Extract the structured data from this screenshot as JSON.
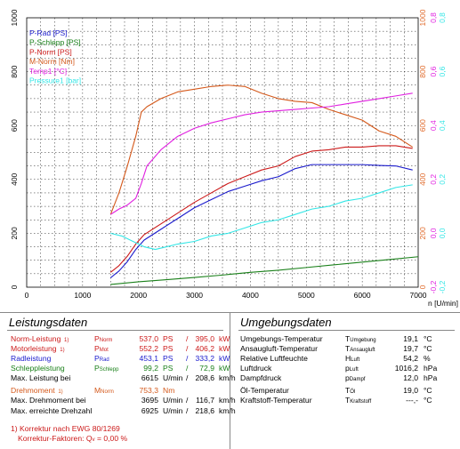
{
  "chart_data": {
    "type": "line",
    "xlabel": "n [U/min]",
    "xlim": [
      0,
      7000
    ],
    "x_ticks": [
      "0",
      "1000",
      "2000",
      "3000",
      "4000",
      "5000",
      "6000",
      "7000"
    ],
    "ylim_left": [
      0,
      1000
    ],
    "y_ticks_left": [
      "0",
      "200",
      "400",
      "600",
      "800",
      "1000"
    ],
    "ylim_right1": [
      0,
      1000
    ],
    "y_ticks_right1": [
      "0",
      "200",
      "400",
      "600",
      "800",
      "1000"
    ],
    "ylim_right2": [
      -0.2,
      0.8
    ],
    "y_ticks_right2": [
      "-0,2",
      "0,0",
      "0,2",
      "0,4",
      "0,6",
      "0,8"
    ],
    "grid": true,
    "legend_position": "top-left",
    "legend": [
      {
        "name": "P-Rad [PS]",
        "color": "#1a1acc"
      },
      {
        "name": "P-Schlepp [PS]",
        "color": "#1a801a"
      },
      {
        "name": "P-Norm [PS]",
        "color": "#cc1a1a"
      },
      {
        "name": "M-Norm [Nm]",
        "color": "#d4581a"
      },
      {
        "name": "Temp1 [°C]",
        "color": "#e020e0"
      },
      {
        "name": "Pressure1 [bar]",
        "color": "#33e6e6"
      }
    ],
    "series": [
      {
        "name": "P-Rad [PS]",
        "color": "#1a1acc",
        "x": [
          1500,
          1650,
          1800,
          1950,
          2100,
          2400,
          2700,
          3000,
          3300,
          3600,
          3900,
          4200,
          4500,
          4800,
          5100,
          5400,
          5700,
          6000,
          6300,
          6600,
          6900
        ],
        "y": [
          35,
          60,
          95,
          140,
          175,
          215,
          255,
          295,
          325,
          355,
          375,
          395,
          410,
          440,
          455,
          455,
          455,
          455,
          452,
          450,
          435
        ]
      },
      {
        "name": "P-Schlepp [PS]",
        "color": "#1a801a",
        "x": [
          1500,
          2000,
          2500,
          3000,
          3500,
          4000,
          4500,
          5000,
          5500,
          6000,
          6500,
          7000
        ],
        "y": [
          10,
          20,
          28,
          36,
          45,
          55,
          63,
          73,
          83,
          93,
          103,
          113
        ]
      },
      {
        "name": "P-Norm [PS]",
        "color": "#cc1a1a",
        "x": [
          1500,
          1650,
          1800,
          1950,
          2100,
          2400,
          2700,
          3000,
          3300,
          3600,
          3900,
          4200,
          4500,
          4800,
          5100,
          5400,
          5700,
          6000,
          6300,
          6600,
          6900
        ],
        "y": [
          55,
          80,
          115,
          160,
          195,
          235,
          275,
          315,
          350,
          385,
          410,
          435,
          450,
          485,
          505,
          510,
          520,
          520,
          525,
          525,
          515
        ]
      },
      {
        "name": "M-Norm [Nm]",
        "color": "#d4581a",
        "x": [
          1500,
          1650,
          1800,
          1950,
          2050,
          2150,
          2400,
          2700,
          3000,
          3300,
          3600,
          3900,
          4200,
          4500,
          4800,
          5100,
          5400,
          5700,
          6000,
          6300,
          6600,
          6900
        ],
        "y": [
          270,
          350,
          450,
          560,
          650,
          670,
          700,
          725,
          735,
          745,
          750,
          745,
          720,
          700,
          690,
          685,
          660,
          640,
          620,
          580,
          560,
          520
        ]
      },
      {
        "name": "Temp1 [°C]",
        "color": "#e020e0",
        "x": [
          1500,
          1650,
          1800,
          1950,
          2050,
          2150,
          2400,
          2700,
          3000,
          3300,
          3600,
          3900,
          4200,
          4500,
          4800,
          5100,
          5400,
          5700,
          6000,
          6300,
          6600,
          6900
        ],
        "y": [
          270,
          290,
          305,
          330,
          385,
          450,
          510,
          560,
          590,
          610,
          625,
          640,
          650,
          655,
          660,
          665,
          670,
          680,
          690,
          700,
          710,
          720
        ]
      },
      {
        "name": "Pressure1 [bar]",
        "color": "#33e6e6",
        "x": [
          1500,
          1700,
          1900,
          2100,
          2300,
          2500,
          2700,
          3000,
          3300,
          3600,
          3900,
          4200,
          4500,
          4800,
          5100,
          5400,
          5700,
          6000,
          6300,
          6600,
          6900
        ],
        "y": [
          0.0,
          -0.01,
          -0.03,
          -0.05,
          -0.06,
          -0.05,
          -0.04,
          -0.03,
          -0.01,
          0.0,
          0.02,
          0.04,
          0.05,
          0.07,
          0.09,
          0.1,
          0.12,
          0.13,
          0.15,
          0.17,
          0.18
        ]
      }
    ]
  },
  "left_panel": {
    "title": "Leistungsdaten",
    "rows": [
      {
        "label": "Norm-Leistung",
        "note": "1)",
        "sym": "P",
        "symsub": "Norm",
        "v1": "537,0",
        "u1": "PS",
        "sep": "/",
        "v2": "395,0",
        "u2": "kW",
        "color": "#cc1a1a"
      },
      {
        "label": "Motorleistung",
        "note": "1)",
        "sym": "P",
        "symsub": "Mot",
        "v1": "552,2",
        "u1": "PS",
        "sep": "/",
        "v2": "406,2",
        "u2": "kW",
        "color": "#cc1a1a"
      },
      {
        "label": "Radleistung",
        "note": "",
        "sym": "P",
        "symsub": "Rad",
        "v1": "453,1",
        "u1": "PS",
        "sep": "/",
        "v2": "333,2",
        "u2": "kW",
        "color": "#1a1acc"
      },
      {
        "label": "Schleppleistung",
        "note": "",
        "sym": "P",
        "symsub": "Schlepp",
        "v1": "99,2",
        "u1": "PS",
        "sep": "/",
        "v2": "72,9",
        "u2": "kW",
        "color": "#1a801a"
      },
      {
        "label": "Max. Leistung bei",
        "note": "",
        "sym": "",
        "symsub": "",
        "v1": "6615",
        "u1": "U/min",
        "sep": "/",
        "v2": "208,6",
        "u2": "km/h",
        "color": "#000000"
      },
      {
        "label": "Drehmoment",
        "note": "1)",
        "sym": "M",
        "symsub": "Norm",
        "v1": "753,3",
        "u1": "Nm",
        "sep": "",
        "v2": "",
        "u2": "",
        "color": "#d4581a"
      },
      {
        "label": "Max. Drehmoment bei",
        "note": "",
        "sym": "",
        "symsub": "",
        "v1": "3695",
        "u1": "U/min",
        "sep": "/",
        "v2": "116,7",
        "u2": "km/h",
        "color": "#000000"
      },
      {
        "label": "Max. erreichte Drehzahl",
        "note": "",
        "sym": "",
        "symsub": "",
        "v1": "6925",
        "u1": "U/min",
        "sep": "/",
        "v2": "218,6",
        "u2": "km/h",
        "color": "#000000"
      }
    ],
    "footnote1": "1) Korrektur nach EWG 80/1269",
    "footnote2": "Korrektur-Faktoren: Q",
    "footnote2_sub": "v",
    "footnote2_val": "=   0,00 %"
  },
  "right_panel": {
    "title": "Umgebungsdaten",
    "rows": [
      {
        "label": "Umgebungs-Temperatur",
        "sym": "T",
        "symsub": "Umgebung",
        "val": "19,1",
        "unit": "°C"
      },
      {
        "label": "Ansaugluft-Temperatur",
        "sym": "T",
        "symsub": "Ansaugluft",
        "val": "19,7",
        "unit": "°C"
      },
      {
        "label": "Relative Luftfeuchte",
        "sym": "H",
        "symsub": "Luft",
        "val": "54,2",
        "unit": "%"
      },
      {
        "label": "Luftdruck",
        "sym": "p",
        "symsub": "Luft",
        "val": "1016,2",
        "unit": "hPa"
      },
      {
        "label": "Dampfdruck",
        "sym": "p",
        "symsub": "Dampf",
        "val": "12,0",
        "unit": "hPa"
      },
      {
        "label": "Öl-Temperatur",
        "sym": "T",
        "symsub": "Öl",
        "val": "19,0",
        "unit": "°C"
      },
      {
        "label": "Kraftstoff-Temperatur",
        "sym": "T",
        "symsub": "Kraftstoff",
        "val": "---,-",
        "unit": "°C"
      }
    ]
  }
}
